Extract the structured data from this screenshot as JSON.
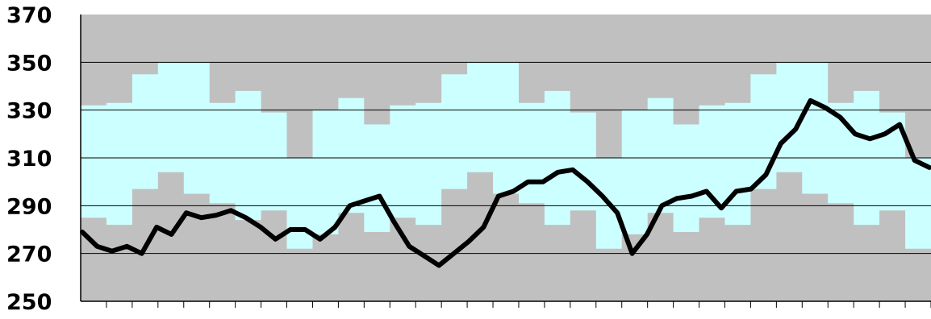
{
  "chart_data": {
    "type": "line",
    "ylim": [
      250,
      370
    ],
    "yticks": [
      "250",
      "270",
      "290",
      "310",
      "330",
      "350",
      "370"
    ],
    "grid": true,
    "legend": "none",
    "colors": {
      "plot_background": "#c0c0c0",
      "band_fill": "#ccffff",
      "line": "#000000",
      "gridline": "#000000"
    },
    "x_count": 33,
    "band": {
      "upper": [
        332,
        333,
        345,
        350,
        350,
        333,
        338,
        329,
        310,
        330,
        335,
        324,
        332,
        333,
        345,
        350,
        350,
        333,
        338,
        329,
        310,
        330,
        335,
        324,
        332,
        333,
        345,
        350,
        350,
        333,
        338,
        329,
        310
      ],
      "lower": [
        285,
        282,
        297,
        304,
        295,
        291,
        284,
        288,
        272,
        278,
        287,
        279,
        285,
        282,
        297,
        304,
        295,
        291,
        282,
        288,
        272,
        278,
        287,
        279,
        285,
        282,
        297,
        304,
        295,
        291,
        282,
        288,
        272
      ]
    },
    "series": [
      {
        "values": [
          279,
          273,
          271,
          273,
          270,
          281,
          278,
          287,
          285,
          286,
          288,
          285,
          281,
          276,
          280,
          280,
          276,
          281,
          290,
          292,
          294,
          283,
          273,
          269,
          265,
          270,
          275,
          281,
          294,
          296,
          300,
          300,
          304,
          305,
          300,
          294,
          287,
          270,
          278,
          290,
          293,
          294,
          296,
          289,
          296,
          297,
          303,
          316,
          322,
          334,
          331,
          327,
          320,
          318,
          320,
          324,
          309,
          306
        ]
      }
    ]
  }
}
